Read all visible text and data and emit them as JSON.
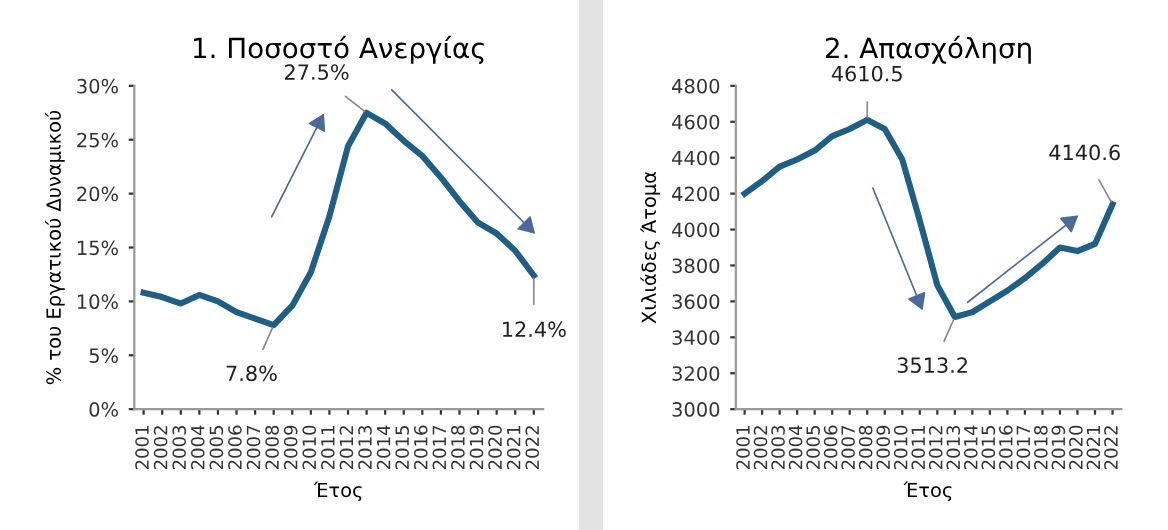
{
  "chart_data": [
    {
      "type": "line",
      "title": "1. Ποσοστό Ανεργίας",
      "xlabel": "Έτος",
      "ylabel": "% του Εργατικού Δυναμικού",
      "categories": [
        "2001",
        "2002",
        "2003",
        "2004",
        "2005",
        "2006",
        "2007",
        "2008",
        "2009",
        "2010",
        "2011",
        "2012",
        "2013",
        "2014",
        "2015",
        "2016",
        "2017",
        "2018",
        "2019",
        "2020",
        "2021",
        "2022"
      ],
      "series": [
        {
          "color": "#1f5f85",
          "values": [
            10.8,
            10.4,
            9.8,
            10.6,
            10.0,
            9.0,
            8.4,
            7.8,
            9.6,
            12.7,
            17.9,
            24.4,
            27.5,
            26.5,
            24.9,
            23.5,
            21.5,
            19.3,
            17.3,
            16.3,
            14.7,
            12.4
          ]
        }
      ],
      "ylim": [
        0,
        30
      ],
      "yticks": [
        {
          "value": 0,
          "label": "0%"
        },
        {
          "value": 5,
          "label": "5%"
        },
        {
          "value": 10,
          "label": "10%"
        },
        {
          "value": 15,
          "label": "15%"
        },
        {
          "value": 20,
          "label": "20%"
        },
        {
          "value": 25,
          "label": "25%"
        },
        {
          "value": 30,
          "label": "30%"
        }
      ],
      "annotations": [
        {
          "text": "7.8%",
          "x": "2008",
          "y": 7.8
        },
        {
          "text": "27.5%",
          "x": "2013",
          "y": 27.5
        },
        {
          "text": "12.4%",
          "x": "2022",
          "y": 12.4
        }
      ],
      "grid": false,
      "legend": false
    },
    {
      "type": "line",
      "title": "2. Απασχόληση",
      "xlabel": "Έτος",
      "ylabel": "Χιλιάδες Άτομα",
      "categories": [
        "2001",
        "2002",
        "2003",
        "2004",
        "2005",
        "2006",
        "2007",
        "2008",
        "2009",
        "2010",
        "2011",
        "2012",
        "2013",
        "2014",
        "2015",
        "2016",
        "2017",
        "2018",
        "2019",
        "2020",
        "2021",
        "2022"
      ],
      "series": [
        {
          "color": "#1f5f85",
          "values": [
            4200,
            4270,
            4350,
            4390,
            4440,
            4520,
            4560,
            4610.5,
            4560,
            4390,
            4050,
            3690,
            3513.2,
            3540,
            3600,
            3660,
            3730,
            3810,
            3900,
            3880,
            3920,
            4140.6
          ]
        }
      ],
      "ylim": [
        3000,
        4800
      ],
      "yticks": [
        3000,
        3200,
        3400,
        3600,
        3800,
        4000,
        4200,
        4400,
        4600,
        4800
      ],
      "annotations": [
        {
          "text": "4610.5",
          "x": "2008",
          "y": 4610.5
        },
        {
          "text": "3513.2",
          "x": "2013",
          "y": 3513.2
        },
        {
          "text": "4140.6",
          "x": "2022",
          "y": 4140.6
        }
      ],
      "grid": false,
      "legend": false
    }
  ]
}
